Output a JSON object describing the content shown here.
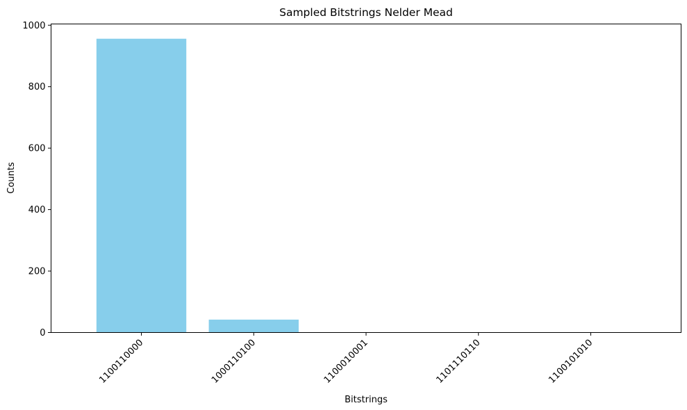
{
  "chart_data": {
    "type": "bar",
    "title": "Sampled Bitstrings Nelder Mead",
    "xlabel": "Bitstrings",
    "ylabel": "Counts",
    "categories": [
      "1100110000",
      "1000110100",
      "1100010001",
      "1101110110",
      "1100101010"
    ],
    "values": [
      956,
      42,
      1,
      1,
      1
    ],
    "ylim": [
      0,
      1004
    ],
    "yticks": [
      0,
      200,
      400,
      600,
      800,
      1000
    ],
    "bar_color": "#87CEEB",
    "grid": false
  }
}
